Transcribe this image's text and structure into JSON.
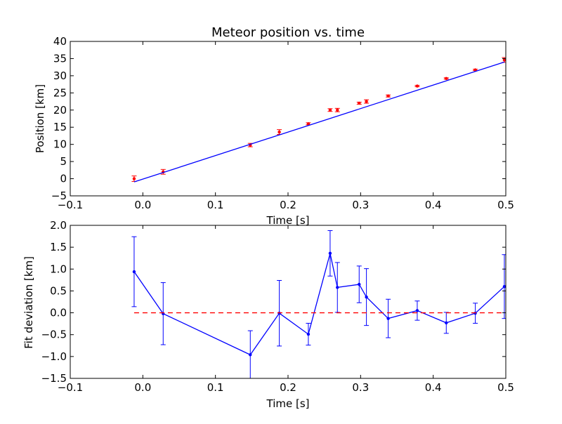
{
  "chart_data": [
    {
      "type": "scatter",
      "title": "Meteor position vs. time",
      "xlabel": "Time [s]",
      "ylabel": "Position [km]",
      "xlim": [
        -0.1,
        0.5
      ],
      "ylim": [
        -5,
        40
      ],
      "xticks": [
        -0.1,
        0.0,
        0.1,
        0.2,
        0.3,
        0.4,
        0.5
      ],
      "xtick_labels": [
        "−0.1",
        "0.0",
        "0.1",
        "0.2",
        "0.3",
        "0.4",
        "0.5"
      ],
      "yticks": [
        -5,
        0,
        5,
        10,
        15,
        20,
        25,
        30,
        35,
        40
      ],
      "ytick_labels": [
        "−5",
        "0",
        "5",
        "10",
        "15",
        "20",
        "25",
        "30",
        "35",
        "40"
      ],
      "grid": false,
      "series": [
        {
          "kind": "points-with-errorbars",
          "color": "#ff0000",
          "x": [
            -0.012,
            0.028,
            0.148,
            0.188,
            0.228,
            0.258,
            0.268,
            0.298,
            0.308,
            0.338,
            0.378,
            0.418,
            0.458,
            0.498
          ],
          "y": [
            0.0,
            2.0,
            9.8,
            13.6,
            16.0,
            20.0,
            20.0,
            22.0,
            22.5,
            24.1,
            27.0,
            29.2,
            31.7,
            34.6
          ],
          "err": [
            0.8,
            0.7,
            0.5,
            0.7,
            0.3,
            0.4,
            0.5,
            0.3,
            0.5,
            0.3,
            0.2,
            0.2,
            0.2,
            0.7
          ]
        },
        {
          "kind": "line",
          "color": "#0000ff",
          "x": [
            -0.012,
            0.498
          ],
          "y": [
            -0.94,
            34.0
          ]
        }
      ]
    },
    {
      "type": "line",
      "title": "",
      "xlabel": "Time [s]",
      "ylabel": "Fit deviation [km]",
      "xlim": [
        -0.1,
        0.5
      ],
      "ylim": [
        -1.5,
        2.0
      ],
      "xticks": [
        -0.1,
        0.0,
        0.1,
        0.2,
        0.3,
        0.4,
        0.5
      ],
      "xtick_labels": [
        "−0.1",
        "0.0",
        "0.1",
        "0.2",
        "0.3",
        "0.4",
        "0.5"
      ],
      "yticks": [
        -1.5,
        -1.0,
        -0.5,
        0.0,
        0.5,
        1.0,
        1.5,
        2.0
      ],
      "ytick_labels": [
        "−1.5",
        "−1.0",
        "−0.5",
        "0.0",
        "0.5",
        "1.0",
        "1.5",
        "2.0"
      ],
      "grid": false,
      "series": [
        {
          "kind": "line-with-errorbars",
          "color": "#0000ff",
          "x": [
            -0.012,
            0.028,
            0.148,
            0.188,
            0.228,
            0.258,
            0.268,
            0.298,
            0.308,
            0.338,
            0.378,
            0.418,
            0.458,
            0.498
          ],
          "y": [
            0.94,
            -0.02,
            -0.96,
            -0.01,
            -0.49,
            1.36,
            0.58,
            0.65,
            0.36,
            -0.13,
            0.05,
            -0.23,
            -0.01,
            0.6
          ],
          "err": [
            0.8,
            0.71,
            0.55,
            0.75,
            0.25,
            0.52,
            0.57,
            0.42,
            0.65,
            0.44,
            0.22,
            0.24,
            0.23,
            0.73
          ]
        },
        {
          "kind": "reference-line",
          "color": "#ff0000",
          "style": "dashed",
          "x": [
            -0.012,
            0.498
          ],
          "y": [
            0.0,
            0.0
          ]
        }
      ]
    }
  ]
}
